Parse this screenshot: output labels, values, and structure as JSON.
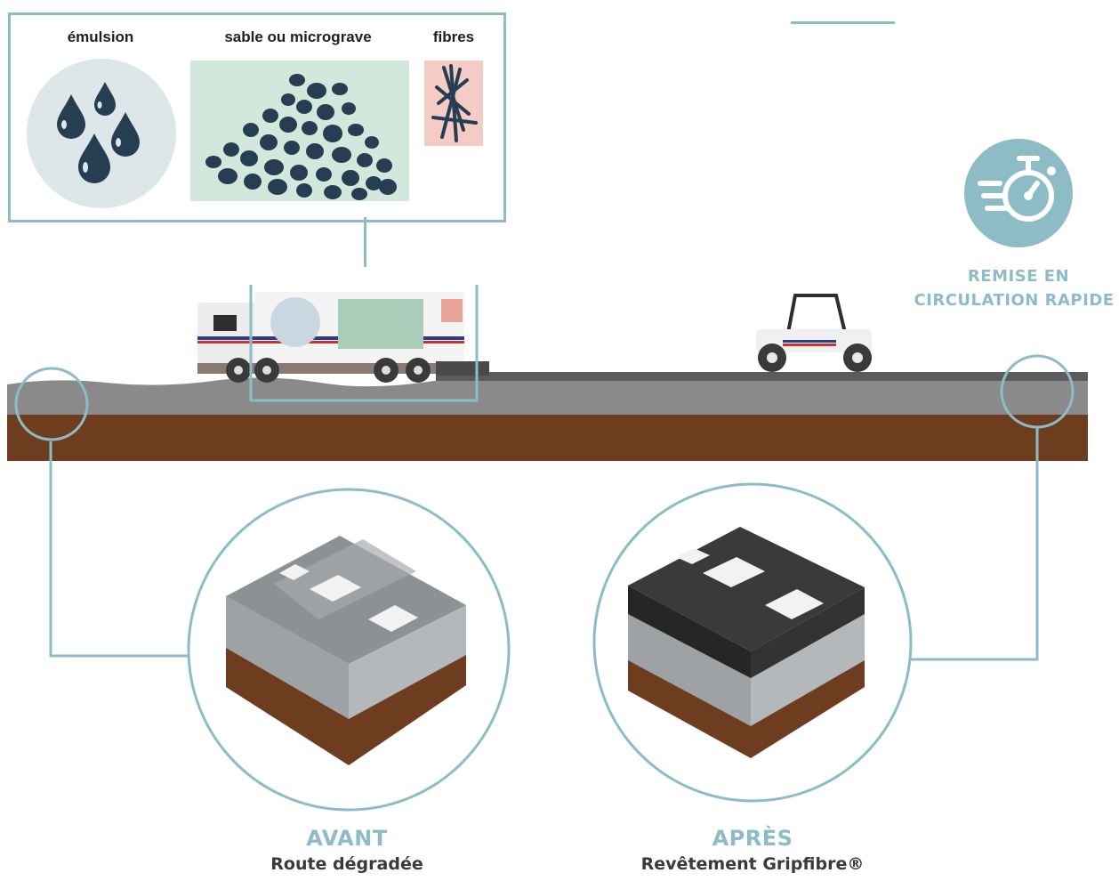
{
  "ingredients": {
    "emulsion": "émulsion",
    "sand": "sable ou micrograve",
    "fibres": "fibres"
  },
  "fast_reopen": {
    "line1": "REMISE EN",
    "line2": "CIRCULATION RAPIDE",
    "icon": "stopwatch-fast-icon"
  },
  "before": {
    "heading": "AVANT",
    "caption": "Route dégradée"
  },
  "after": {
    "heading": "APRÈS",
    "caption": "Revêtement Gripfibre®"
  },
  "colors": {
    "accent": "#8dbcc6",
    "navy": "#263e52",
    "asphalt": "#8a8a8a",
    "soil": "#6e3d1f",
    "sand_bg": "#d2e8dc",
    "fibre_bg": "#f5cbc5",
    "emulsion_bg": "#dde7ea"
  }
}
